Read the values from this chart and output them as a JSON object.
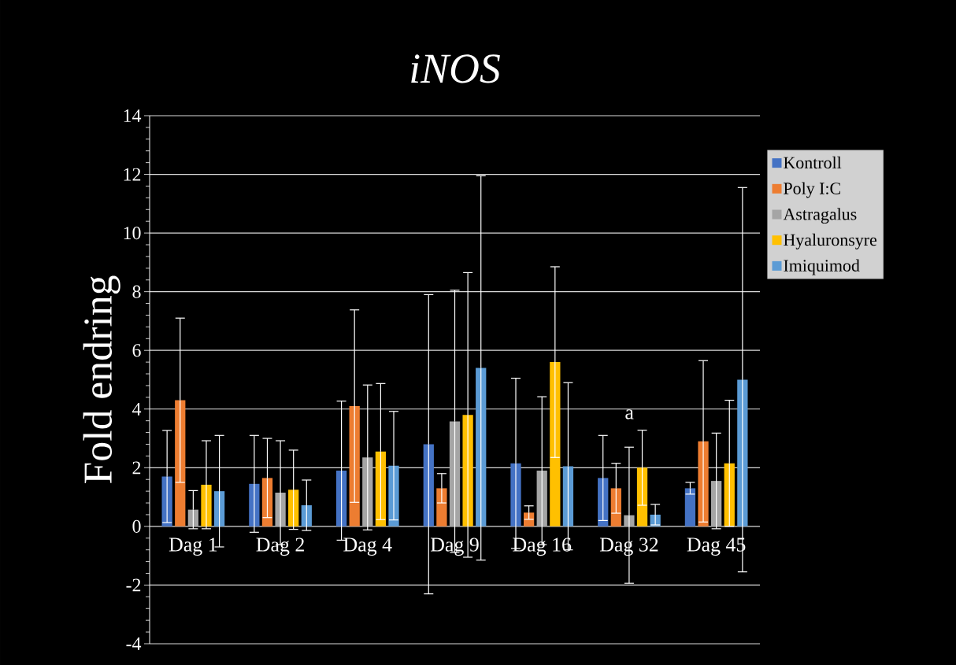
{
  "chart_data": {
    "type": "bar",
    "title": "iNOS",
    "ylabel": "Fold endring",
    "categories": [
      "Dag 1",
      "Dag 2",
      "Dag 4",
      "Dag 9",
      "Dag 16",
      "Dag 32",
      "Dag 45"
    ],
    "series": [
      {
        "name": "Kontroll",
        "color": "#4472c4",
        "values": [
          1.7,
          1.45,
          1.9,
          2.8,
          2.15,
          1.65,
          1.3
        ],
        "errors": [
          1.57,
          1.65,
          2.37,
          5.1,
          2.9,
          1.45,
          0.2
        ]
      },
      {
        "name": "Poly I:C",
        "color": "#ed7d31",
        "values": [
          4.3,
          1.65,
          4.1,
          1.3,
          0.47,
          1.3,
          2.9
        ],
        "errors": [
          2.8,
          1.35,
          3.28,
          0.5,
          0.23,
          0.85,
          2.75
        ]
      },
      {
        "name": "Astragalus",
        "color": "#a5a5a5",
        "values": [
          0.57,
          1.15,
          2.35,
          3.58,
          1.9,
          0.38,
          1.55
        ],
        "errors": [
          0.65,
          1.77,
          2.47,
          4.47,
          2.52,
          2.32,
          1.63
        ]
      },
      {
        "name": "Hyaluronsyre",
        "color": "#ffc000",
        "values": [
          1.42,
          1.25,
          2.55,
          3.8,
          5.6,
          2.0,
          2.15
        ],
        "errors": [
          1.5,
          1.35,
          2.32,
          4.85,
          3.25,
          1.28,
          2.15
        ]
      },
      {
        "name": "Imiquimod",
        "color": "#5b9bd5",
        "values": [
          1.2,
          0.72,
          2.07,
          5.4,
          2.05,
          0.4,
          5.0
        ],
        "errors": [
          1.9,
          0.86,
          1.85,
          6.55,
          2.85,
          0.35,
          6.55
        ]
      }
    ],
    "ylim": [
      -4,
      14
    ],
    "yticks": [
      -4,
      -2,
      0,
      2,
      4,
      6,
      8,
      10,
      12,
      14
    ],
    "grid": "y",
    "legend": "right",
    "annotations": [
      "a"
    ]
  }
}
